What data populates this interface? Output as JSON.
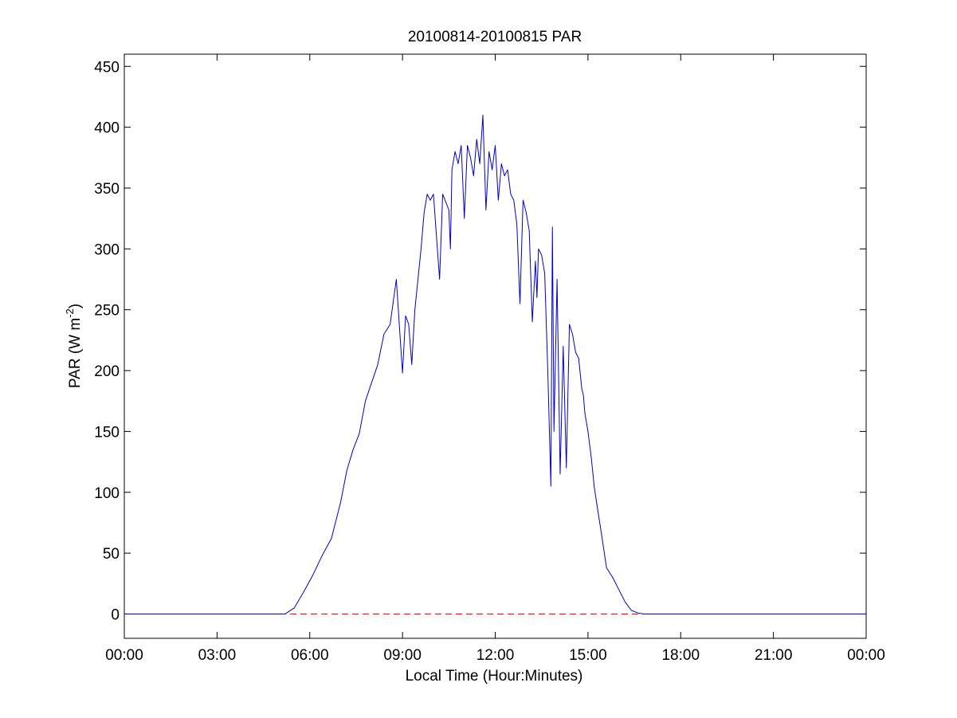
{
  "chart_data": {
    "type": "line",
    "title": "20100814-20100815 PAR",
    "xlabel": "Local Time (Hour:Minutes)",
    "ylabel_main": "PAR (W m",
    "ylabel_exponent": "-2",
    "ylabel_close": ")",
    "x_unit": "hours",
    "xlim": [
      0,
      24
    ],
    "ylim": [
      -20,
      460
    ],
    "xticks": [
      0,
      3,
      6,
      9,
      12,
      15,
      18,
      21,
      24
    ],
    "xtick_labels": [
      "00:00",
      "03:00",
      "06:00",
      "09:00",
      "12:00",
      "15:00",
      "18:00",
      "21:00",
      "00:00"
    ],
    "yticks": [
      0,
      50,
      100,
      150,
      200,
      250,
      300,
      350,
      400,
      450
    ],
    "ytick_labels": [
      "0",
      "50",
      "100",
      "150",
      "200",
      "250",
      "300",
      "350",
      "400",
      "450"
    ],
    "grid": false,
    "legend": "none",
    "series": [
      {
        "line_color": "#0000cc",
        "line_style": "solid",
        "x": [
          0,
          5.2,
          5.5,
          5.8,
          6.1,
          6.4,
          6.7,
          7.0,
          7.2,
          7.4,
          7.6,
          7.8,
          8.0,
          8.2,
          8.4,
          8.6,
          8.8,
          9.0,
          9.1,
          9.2,
          9.3,
          9.4,
          9.5,
          9.6,
          9.7,
          9.8,
          9.9,
          10.0,
          10.2,
          10.3,
          10.5,
          10.55,
          10.6,
          10.7,
          10.8,
          10.9,
          11.0,
          11.1,
          11.2,
          11.3,
          11.4,
          11.5,
          11.6,
          11.7,
          11.8,
          11.9,
          12.0,
          12.1,
          12.2,
          12.3,
          12.4,
          12.5,
          12.6,
          12.7,
          12.8,
          12.9,
          13.0,
          13.1,
          13.2,
          13.3,
          13.35,
          13.4,
          13.5,
          13.6,
          13.7,
          13.8,
          13.85,
          13.9,
          14.0,
          14.1,
          14.2,
          14.3,
          14.4,
          14.5,
          14.6,
          14.7,
          14.8,
          14.85,
          14.9,
          15.0,
          15.1,
          15.15,
          15.2,
          15.3,
          15.4,
          15.5,
          15.6,
          15.8,
          16.0,
          16.2,
          16.4,
          16.6,
          16.8,
          17.0,
          17.2,
          17.4,
          17.6,
          17.8,
          18.0,
          18.2,
          18.4,
          18.6,
          18.8,
          19.0,
          19.2,
          24
        ],
        "y": [
          0,
          0,
          5,
          18,
          32,
          48,
          62,
          92,
          118,
          135,
          148,
          175,
          190,
          205,
          230,
          238,
          275,
          198,
          245,
          238,
          205,
          250,
          275,
          300,
          330,
          345,
          340,
          345,
          275,
          345,
          332,
          300,
          365,
          380,
          370,
          385,
          325,
          385,
          375,
          360,
          390,
          370,
          410,
          332,
          380,
          365,
          385,
          340,
          370,
          360,
          365,
          345,
          340,
          320,
          255,
          340,
          330,
          315,
          240,
          290,
          260,
          300,
          295,
          280,
          200,
          105,
          318,
          150,
          275,
          115,
          220,
          120,
          238,
          230,
          215,
          210,
          185,
          180,
          165,
          150,
          130,
          118,
          105,
          88,
          72,
          55,
          38,
          30,
          20,
          10,
          3,
          1,
          0,
          0,
          0,
          0,
          0,
          0,
          0,
          0,
          0,
          0,
          0,
          0,
          0,
          0
        ]
      },
      {
        "line_color": "#ff0000",
        "line_style": "dashed",
        "x": [
          0,
          24
        ],
        "y": [
          0,
          0
        ]
      }
    ]
  }
}
